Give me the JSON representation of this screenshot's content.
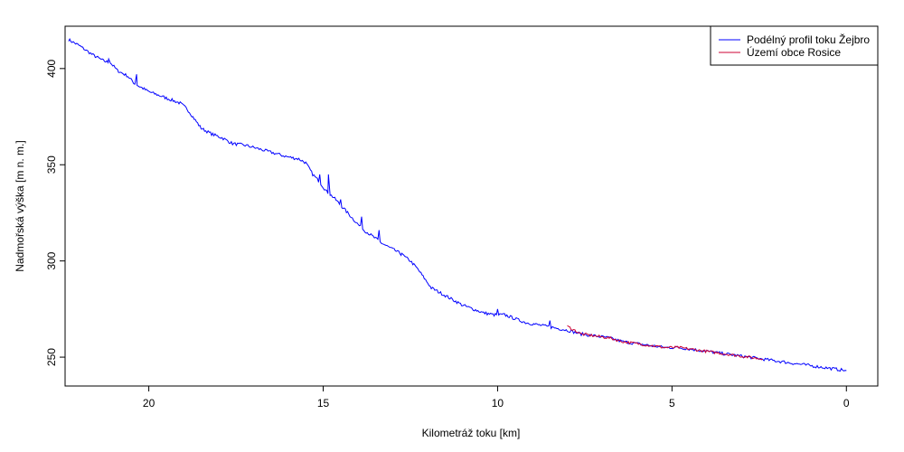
{
  "chart_data": {
    "type": "line",
    "xlabel": "Kilometráž toku [km]",
    "ylabel": "Nadmořská výška [m n. m.]",
    "xlim": [
      22.4,
      -0.9
    ],
    "ylim": [
      235,
      422
    ],
    "x_reversed": true,
    "x_ticks": [
      20,
      15,
      10,
      5,
      0
    ],
    "y_ticks": [
      250,
      300,
      350,
      400
    ],
    "legend_position": "top-right",
    "series": [
      {
        "name": "Podélný profil toku Žejbro",
        "color": "#0000ff",
        "points": [
          [
            22.3,
            415
          ],
          [
            22.0,
            412
          ],
          [
            21.6,
            407
          ],
          [
            21.3,
            404
          ],
          [
            21.1,
            403
          ],
          [
            20.9,
            399
          ],
          [
            20.6,
            396
          ],
          [
            20.4,
            392
          ],
          [
            20.2,
            390
          ],
          [
            20.0,
            388
          ],
          [
            19.7,
            386
          ],
          [
            19.4,
            384
          ],
          [
            19.1,
            382
          ],
          [
            18.9,
            379
          ],
          [
            18.7,
            374
          ],
          [
            18.5,
            369
          ],
          [
            18.2,
            366
          ],
          [
            17.9,
            364
          ],
          [
            17.6,
            361
          ],
          [
            17.2,
            360
          ],
          [
            16.8,
            358
          ],
          [
            16.4,
            356
          ],
          [
            16.0,
            354
          ],
          [
            15.7,
            353
          ],
          [
            15.5,
            351
          ],
          [
            15.4,
            348
          ],
          [
            15.3,
            345
          ],
          [
            15.1,
            341
          ],
          [
            14.9,
            336
          ],
          [
            14.7,
            333
          ],
          [
            14.5,
            329
          ],
          [
            14.3,
            325
          ],
          [
            14.1,
            321
          ],
          [
            13.9,
            317
          ],
          [
            13.6,
            313
          ],
          [
            13.3,
            309
          ],
          [
            13.0,
            306
          ],
          [
            12.8,
            304
          ],
          [
            12.5,
            300
          ],
          [
            12.3,
            296
          ],
          [
            12.1,
            291
          ],
          [
            11.9,
            286
          ],
          [
            11.6,
            283
          ],
          [
            11.3,
            280
          ],
          [
            11.0,
            277
          ],
          [
            10.7,
            275
          ],
          [
            10.4,
            273
          ],
          [
            10.1,
            272
          ],
          [
            9.8,
            272
          ],
          [
            9.5,
            270
          ],
          [
            9.2,
            268
          ],
          [
            8.9,
            267
          ],
          [
            8.6,
            266
          ],
          [
            8.3,
            265
          ],
          [
            8.0,
            264
          ],
          [
            7.6,
            262
          ],
          [
            7.2,
            261
          ],
          [
            6.8,
            260
          ],
          [
            6.4,
            258
          ],
          [
            6.0,
            257
          ],
          [
            5.6,
            256
          ],
          [
            5.2,
            255
          ],
          [
            4.8,
            255
          ],
          [
            4.4,
            254
          ],
          [
            4.0,
            253
          ],
          [
            3.6,
            252
          ],
          [
            3.2,
            251
          ],
          [
            2.8,
            250
          ],
          [
            2.4,
            249
          ],
          [
            2.0,
            248
          ],
          [
            1.6,
            247
          ],
          [
            1.2,
            246
          ],
          [
            0.8,
            245
          ],
          [
            0.4,
            244
          ],
          [
            0.0,
            243
          ]
        ],
        "spikes": [
          [
            21.15,
            405
          ],
          [
            20.35,
            397
          ],
          [
            15.1,
            345
          ],
          [
            14.85,
            345
          ],
          [
            14.5,
            332
          ],
          [
            13.9,
            323
          ],
          [
            13.4,
            316
          ],
          [
            12.75,
            304
          ],
          [
            10.0,
            275
          ],
          [
            8.5,
            269
          ]
        ]
      },
      {
        "name": "Území obce Rosice",
        "color": "#cc0033",
        "points": [
          [
            8.0,
            266
          ],
          [
            7.6,
            262
          ],
          [
            7.2,
            261
          ],
          [
            6.8,
            260
          ],
          [
            6.4,
            258
          ],
          [
            6.0,
            257
          ],
          [
            5.6,
            256
          ],
          [
            5.2,
            255
          ],
          [
            4.8,
            255
          ],
          [
            4.4,
            254
          ],
          [
            4.0,
            253
          ],
          [
            3.6,
            252
          ],
          [
            3.2,
            251
          ],
          [
            2.8,
            250
          ],
          [
            2.4,
            249
          ]
        ]
      }
    ]
  }
}
